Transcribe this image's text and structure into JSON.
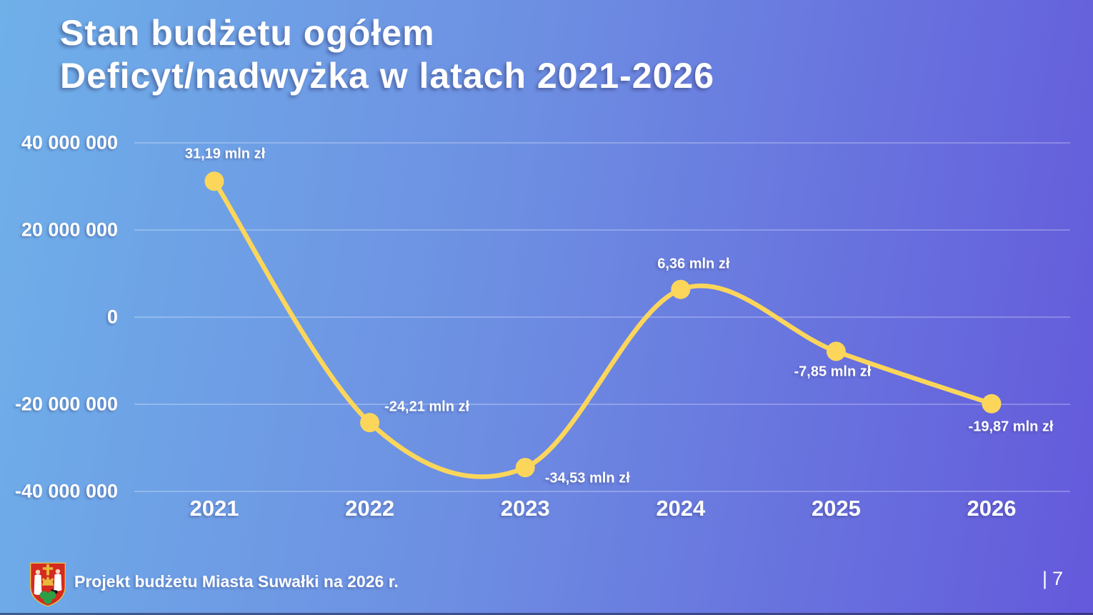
{
  "title": {
    "line1": "Stan budżetu ogółem",
    "line2": "Deficyt/nadwyżka w latach 2021-2026"
  },
  "chart_data": {
    "type": "line",
    "title": "Stan budżetu ogółem — Deficyt/nadwyżka w latach 2021-2026",
    "categories": [
      "2021",
      "2022",
      "2023",
      "2024",
      "2025",
      "2026"
    ],
    "series": [
      {
        "name": "Deficyt/nadwyżka",
        "values": [
          31190000,
          -24210000,
          -34530000,
          6360000,
          -7850000,
          -19870000
        ]
      }
    ],
    "point_labels": [
      "31,19 mln zł",
      "-24,21 mln zł",
      "-34,53 mln zł",
      "6,36 mln zł",
      "-7,85 mln zł",
      "-19,87 mln zł"
    ],
    "y_ticks": [
      {
        "label": "40 000 000",
        "value": 40000000
      },
      {
        "label": "20 000 000",
        "value": 20000000
      },
      {
        "label": "0",
        "value": 0
      },
      {
        "label": "-20 000 000",
        "value": -20000000
      },
      {
        "label": "-40 000 000",
        "value": -40000000
      }
    ],
    "ylim": [
      -40000000,
      40000000
    ],
    "xlabel": "",
    "ylabel": "",
    "unit": "zł",
    "grid": true,
    "legend": "none",
    "line_color": "#FCD65B",
    "marker_color": "#FCD65B"
  },
  "footer": {
    "text": "Projekt budżetu Miasta Suwałki na 2026 r.",
    "page_divider": "|",
    "page_number": "7",
    "crest_name": "Herb Miasta Suwałki"
  },
  "colors": {
    "background_gradient_start": "#6FB0E9",
    "background_gradient_end": "#6459DB",
    "text": "#FFFFFF",
    "gridline": "rgba(255,255,255,0.40)",
    "accent_yellow": "#FCD65B",
    "crest_red": "#D42A20",
    "crest_gold": "#E8B83A",
    "crest_green": "#2E9E44"
  }
}
